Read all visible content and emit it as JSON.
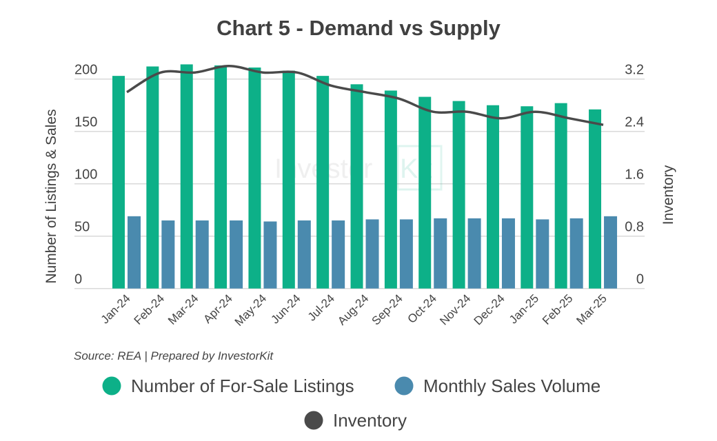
{
  "chart_data": {
    "type": "bar",
    "title": "Chart 5 - Demand vs Supply",
    "categories": [
      "Jan-24",
      "Feb-24",
      "Mar-24",
      "Apr-24",
      "May-24",
      "Jun-24",
      "Jul-24",
      "Aug-24",
      "Sep-24",
      "Oct-24",
      "Nov-24",
      "Dec-24",
      "Jan-25",
      "Feb-25",
      "Mar-25"
    ],
    "series": [
      {
        "name": "Number of For-Sale Listings",
        "type": "bar",
        "axis": "left",
        "color": "#0db088",
        "values": [
          203,
          212,
          214,
          213,
          211,
          208,
          203,
          195,
          189,
          183,
          179,
          175,
          174,
          177,
          171
        ]
      },
      {
        "name": "Monthly Sales Volume",
        "type": "bar",
        "axis": "left",
        "color": "#4a8aae",
        "values": [
          69,
          65,
          65,
          65,
          64,
          65,
          65,
          66,
          66,
          67,
          67,
          67,
          66,
          67,
          69
        ]
      },
      {
        "name": "Inventory",
        "type": "line",
        "axis": "right",
        "color": "#4a4a4a",
        "values": [
          3.0,
          3.3,
          3.3,
          3.4,
          3.3,
          3.3,
          3.1,
          3.0,
          2.9,
          2.7,
          2.7,
          2.6,
          2.7,
          2.6,
          2.5
        ]
      }
    ],
    "ylabel": "Number of Listings & Sales",
    "ylim": [
      0,
      200
    ],
    "yticks": [
      "0",
      "50",
      "100",
      "150",
      "200"
    ],
    "y2label": "Inventory",
    "y2lim": [
      0,
      3.2
    ],
    "y2ticks": [
      "0",
      "0.8",
      "1.6",
      "2.4",
      "3.2"
    ],
    "grid": true,
    "legend_position": "bottom",
    "source": "Source: REA | Prepared by InvestorKit",
    "watermark": "InvestorKit"
  }
}
